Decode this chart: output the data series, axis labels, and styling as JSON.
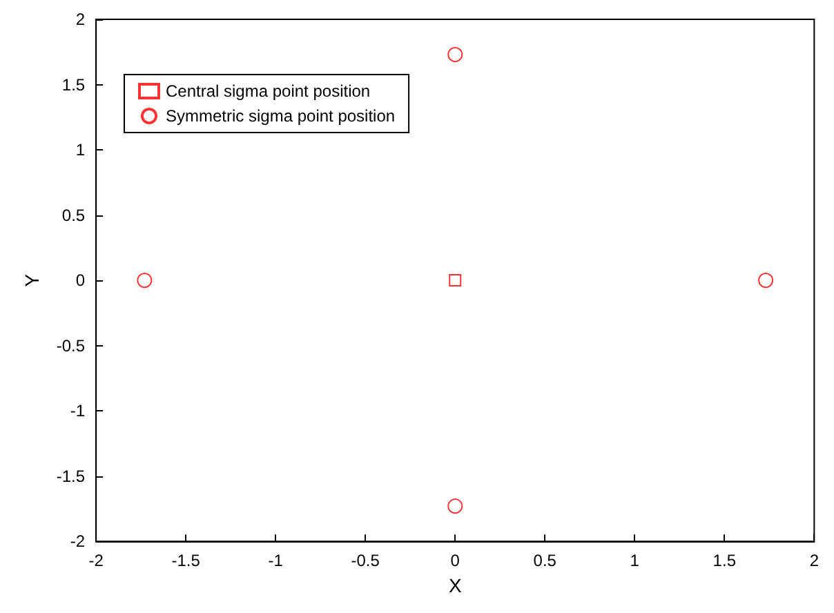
{
  "chart_data": {
    "type": "scatter",
    "xlabel": "X",
    "ylabel": "Y",
    "series": [
      {
        "name": "Central sigma point position",
        "color": "#ff0000",
        "marker": "square",
        "x": [
          0
        ],
        "values": [
          0
        ]
      },
      {
        "name": "Symmetric sigma point position",
        "color": "#ff0000",
        "marker": "circle",
        "x": [
          -1.73,
          0,
          1.73,
          0
        ],
        "values": [
          0,
          1.73,
          0,
          -1.73
        ]
      }
    ],
    "xlim": [
      -2,
      2
    ],
    "xticks": [
      -2,
      -1.5,
      -1,
      -0.5,
      0,
      0.5,
      1,
      1.5,
      2
    ],
    "ylim": [
      -2,
      2
    ],
    "yticks": [
      -2,
      -1.5,
      -1,
      -0.5,
      0,
      0.5,
      1,
      1.5,
      2
    ],
    "grid": false,
    "legend": "top left"
  }
}
